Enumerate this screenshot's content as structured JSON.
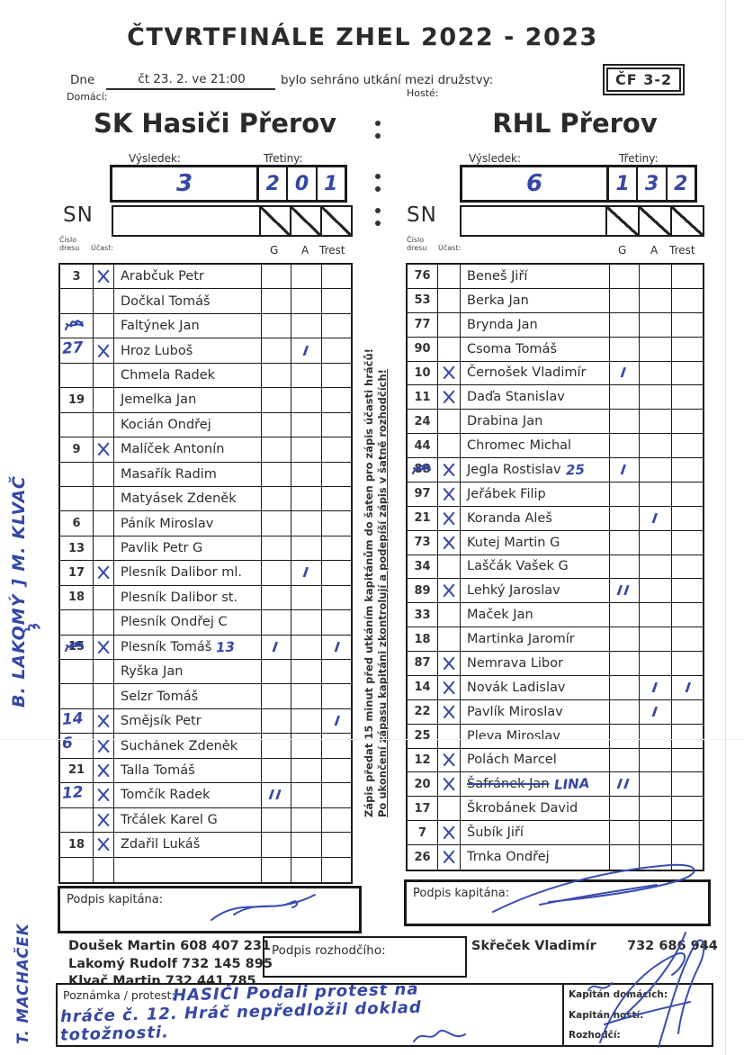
{
  "header": {
    "title": "ČTVRTFINÁLE ZHEL 2022 - 2023",
    "dne_label": "Dne",
    "date_value": "čt 23. 2. ve 21:00",
    "played_text": "bylo sehráno utkání mezi družstvy:",
    "match_code": "ČF 3-2",
    "domaci_label": "Domácí:",
    "hoste_label": "Hosté:"
  },
  "labels": {
    "vysledek": "Výsledek:",
    "tretiny": "Třetiny:",
    "sn": "SN",
    "cislo": "Číslo",
    "dresu": "dresu",
    "ucast": "Účast:",
    "g": "G",
    "a": "A",
    "trest": "Trest"
  },
  "left_team": {
    "name": "SK Hasiči Přerov",
    "vysledek": "3",
    "tretiny": [
      "2",
      "0",
      "1"
    ],
    "players": [
      {
        "num": "3",
        "x": true,
        "name": "Arabčuk Petr"
      },
      {
        "name": "Dočkal Tomáš"
      },
      {
        "scribble": true,
        "name": "Faltýnek Jan"
      },
      {
        "num": "27",
        "pen": true,
        "x": true,
        "name": "Hroz Luboš",
        "a": "I"
      },
      {
        "name": "Chmela Radek"
      },
      {
        "num": "19",
        "name": "Jemelka Jan"
      },
      {
        "name": "Kocián Ondřej"
      },
      {
        "num": "9",
        "x": true,
        "name": "Malíček Antonín"
      },
      {
        "name": "Masařík Radim"
      },
      {
        "name": "Matyásek Zdeněk"
      },
      {
        "num": "6",
        "name": "Páník Miroslav"
      },
      {
        "num": "13",
        "name": "Pavlik Petr G"
      },
      {
        "num": "17",
        "x": true,
        "name": "Plesník Dalibor ml.",
        "a": "I"
      },
      {
        "num": "18",
        "name": "Plesník Dalibor st."
      },
      {
        "name": "Plesník Ondřej C"
      },
      {
        "num": "15",
        "scribble": true,
        "x": true,
        "name": "Plesník Tomáš",
        "note": "13",
        "g": "I",
        "t": "I"
      },
      {
        "name": "Ryška Jan"
      },
      {
        "name": "Selzr Tomáš"
      },
      {
        "num": "14",
        "pen": true,
        "x": true,
        "name": "Smějsík Petr",
        "t": "I"
      },
      {
        "num": "6",
        "pen": true,
        "x": true,
        "name": "Suchánek Zdeněk"
      },
      {
        "num": "21",
        "x": true,
        "name": "Talla Tomáš"
      },
      {
        "num": "12",
        "pen": true,
        "x": true,
        "name": "Tomčík Radek",
        "g": "II"
      },
      {
        "x": true,
        "name": "Trčálek Karel G"
      },
      {
        "num": "18",
        "x": true,
        "name": "Zdařil Lukáš"
      },
      {
        "name": ""
      }
    ]
  },
  "right_team": {
    "name": "RHL Přerov",
    "vysledek": "6",
    "tretiny": [
      "1",
      "3",
      "2"
    ],
    "players": [
      {
        "num": "76",
        "name": "Beneš Jiří"
      },
      {
        "num": "53",
        "name": "Berka Jan"
      },
      {
        "num": "77",
        "name": "Brynda Jan"
      },
      {
        "num": "90",
        "name": "Csoma Tomáš"
      },
      {
        "num": "10",
        "x": true,
        "name": "Černošek Vladimír",
        "g": "I"
      },
      {
        "num": "11",
        "x": true,
        "name": "Daďa Stanislav"
      },
      {
        "num": "24",
        "name": "Drabina Jan"
      },
      {
        "num": "44",
        "name": "Chromec Michal"
      },
      {
        "num": "88",
        "scribble": true,
        "x": true,
        "name": "Jegla Rostislav",
        "note": "25",
        "g": "I"
      },
      {
        "num": "97",
        "x": true,
        "name": "Jeřábek Filip"
      },
      {
        "num": "21",
        "x": true,
        "name": "Koranda Aleš",
        "a": "I"
      },
      {
        "num": "73",
        "x": true,
        "name": "Kutej Martin G"
      },
      {
        "num": "34",
        "name": "Laščák Vašek G"
      },
      {
        "num": "89",
        "x": true,
        "name": "Lehký Jaroslav",
        "g": "II"
      },
      {
        "num": "33",
        "name": "Maček Jan"
      },
      {
        "num": "18",
        "name": "Martinka Jaromír"
      },
      {
        "num": "87",
        "x": true,
        "name": "Nemrava Libor"
      },
      {
        "num": "14",
        "x": true,
        "name": "Novák Ladislav",
        "a": "I",
        "t": "I"
      },
      {
        "num": "22",
        "x": true,
        "name": "Pavlík Miroslav",
        "a": "I"
      },
      {
        "num": "25",
        "name": "Pleva Miroslav"
      },
      {
        "num": "12",
        "x": true,
        "name": "Polách Marcel"
      },
      {
        "num": "20",
        "x": true,
        "name": "Šafránek Jan",
        "struck": true,
        "note": "LINA",
        "g": "II"
      },
      {
        "num": "17",
        "name": "Škrobánek David"
      },
      {
        "num": "7",
        "x": true,
        "name": "Šubík Jiří"
      },
      {
        "num": "26",
        "x": true,
        "name": "Trnka Ondřej"
      }
    ]
  },
  "middle_instructions": {
    "line1": "Zápis předat 15 minut před utkáním kapitánům do šaten pro zápis účasti hráčů!",
    "line2": "Po ukončení zápasu kapitáni zkontrolují a podepíší zápis v šatně rozhodčích!"
  },
  "margin_notes": {
    "top": "B. LAKOMÝ ] M. KLVAČ",
    "bottom": "T. MACHAČEK"
  },
  "footer": {
    "podpis_kapitana": "Podpis kapitána:",
    "contacts": [
      "Doušek Martin 608 407 231",
      "Lakomý Rudolf  732 145 895",
      "Klvač Martin 732 441 785"
    ],
    "podpis_rozhodciho": "Podpis rozhodčího:",
    "referee_name": "Skřeček Vladimír",
    "referee_phone": "732 686 944",
    "poznamka_label": "Poznámka / protest:",
    "poznamka_lines": [
      "HASIČI Podali protest na",
      "hráče č. 12. Hráč nepředložil doklad",
      "totožnosti."
    ],
    "kapitan_domacich": "Kapitán domácích:",
    "kapitan_hosti": "Kapitán hostí:",
    "rozhodci": "Rozhodčí:"
  },
  "colors": {
    "pen": "#3547a5",
    "ink": "#2d2d2d"
  }
}
